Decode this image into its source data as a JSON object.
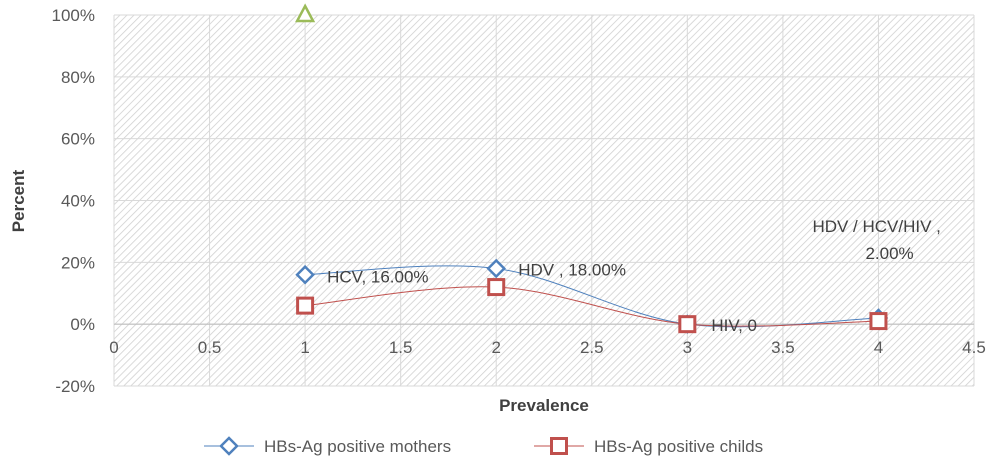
{
  "chart_data": {
    "type": "scatter",
    "title": "",
    "xlabel": "Prevalence",
    "ylabel": "Percent",
    "xlim": [
      0,
      4.5
    ],
    "ylim": [
      -20,
      100
    ],
    "x_ticks": [
      "0",
      "0.5",
      "1",
      "1.5",
      "2",
      "2.5",
      "3",
      "3.5",
      "4",
      "4.5"
    ],
    "y_ticks": [
      "-20%",
      "0%",
      "20%",
      "40%",
      "60%",
      "80%",
      "100%"
    ],
    "grid": true,
    "background": "hatched",
    "legend_position": "bottom",
    "series": [
      {
        "name": "HBs-Ag positive mothers",
        "marker": "diamond",
        "color": "#4f81bd",
        "x": [
          1,
          2,
          3,
          4
        ],
        "y": [
          16,
          18,
          0,
          2
        ]
      },
      {
        "name": "HBs-Ag positive childs",
        "marker": "square",
        "color": "#c0504d",
        "x": [
          1,
          2,
          3,
          4
        ],
        "y": [
          6,
          12,
          0,
          1
        ]
      },
      {
        "name": "",
        "marker": "triangle",
        "color": "#9bbb59",
        "x": [
          1
        ],
        "y": [
          100
        ]
      }
    ],
    "annotations": [
      {
        "lines": [
          "HCV, 16.00%"
        ],
        "x": 1,
        "y": 16
      },
      {
        "lines": [
          "HDV , 18.00%"
        ],
        "x": 2,
        "y": 18
      },
      {
        "lines": [
          "HIV, 0"
        ],
        "x": 3,
        "y": 0
      },
      {
        "lines": [
          "HDV / HCV/HIV   ,",
          "2.00%"
        ],
        "x": 4,
        "y": 2
      }
    ]
  }
}
